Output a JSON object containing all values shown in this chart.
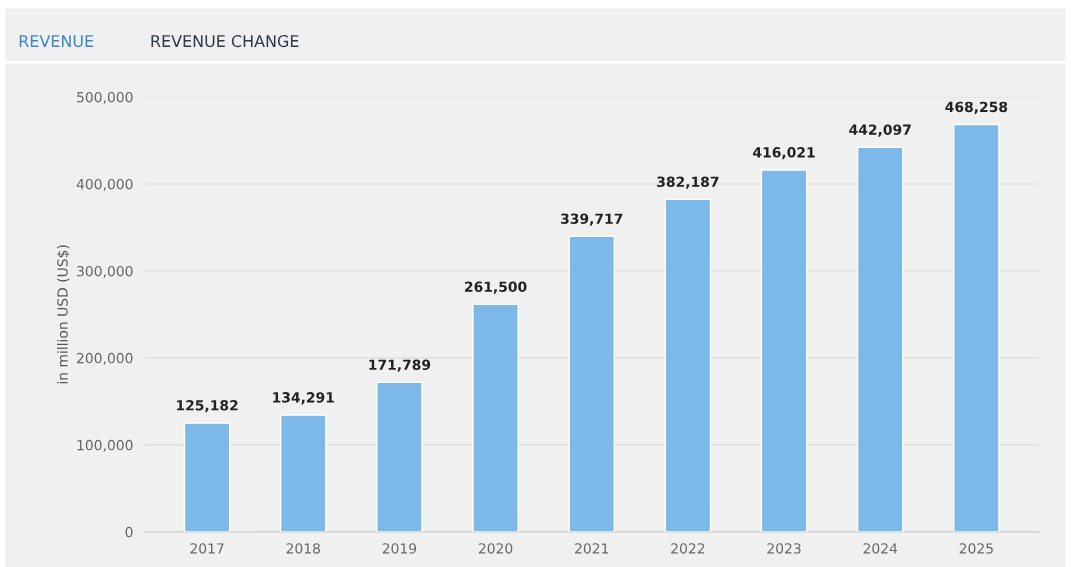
{
  "chart_data": {
    "type": "bar",
    "annotations": [
      "REVENUE",
      "REVENUE CHANGE"
    ],
    "ylabel": "in million USD (US$)",
    "categories": [
      "2017",
      "2018",
      "2019",
      "2020",
      "2021",
      "2022",
      "2023",
      "2024",
      "2025"
    ],
    "values": [
      125182,
      134291,
      171789,
      261500,
      339717,
      382187,
      416021,
      442097,
      468258
    ],
    "value_labels": [
      "125,182",
      "134,291",
      "171,789",
      "261,500",
      "339,717",
      "382,187",
      "416,021",
      "442,097",
      "468,258"
    ],
    "color": "#7cb8e8",
    "ylim": [
      0,
      500000
    ],
    "yticks": [
      {
        "value": 0,
        "label": "0"
      },
      {
        "value": 100000,
        "label": "100,000"
      },
      {
        "value": 200000,
        "label": "200,000"
      },
      {
        "value": 300000,
        "label": "300,000"
      },
      {
        "value": 400000,
        "label": "400,000"
      },
      {
        "value": 500000,
        "label": "500,000"
      }
    ],
    "grid": "y"
  }
}
